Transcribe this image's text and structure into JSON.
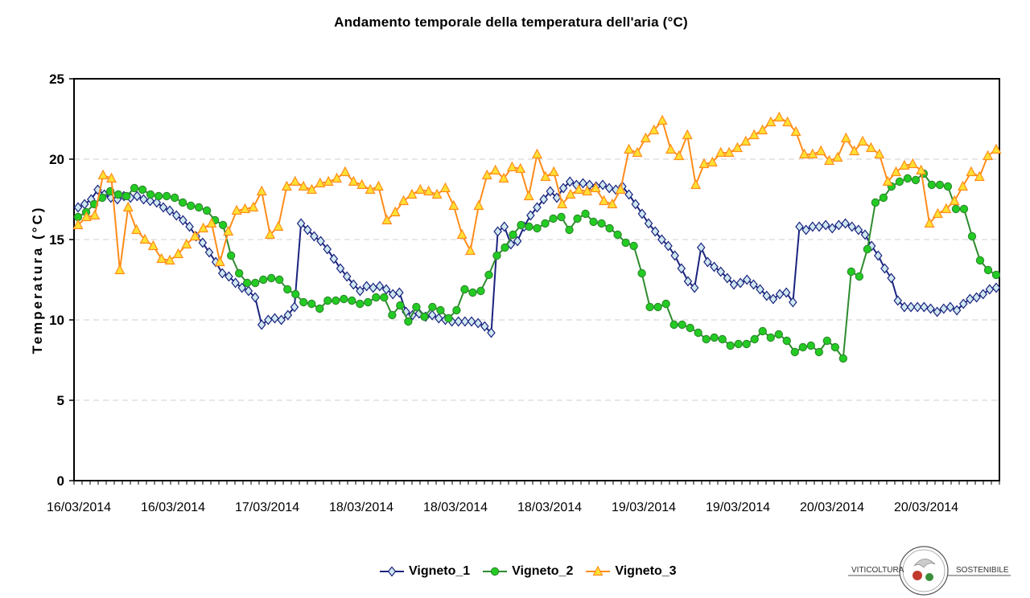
{
  "title": "Andamento temporale della temperatura dell'aria (°C)",
  "logo": {
    "left_text": "VITICOLTURA",
    "right_text": "SOSTENIBILE"
  },
  "chart_data": {
    "type": "line",
    "title": "Andamento temporale della temperatura dell'aria (°C)",
    "xlabel": "",
    "ylabel": "Temperatura (°C)",
    "ylim": [
      0,
      25
    ],
    "yticks": [
      0,
      5,
      10,
      15,
      20,
      25
    ],
    "grid": "horizontal dashed",
    "legend_position": "bottom",
    "x_tick_labels": [
      "16/03/2014",
      "16/03/2014",
      "17/03/2014",
      "18/03/2014",
      "18/03/2014",
      "18/03/2014",
      "19/03/2014",
      "19/03/2014",
      "20/03/2014",
      "20/03/2014"
    ],
    "series": [
      {
        "name": "Vigneto_1",
        "color": "#1a237e",
        "marker": "diamond",
        "values": [
          17.0,
          17.2,
          17.5,
          18.1,
          17.8,
          17.6,
          17.5,
          17.7,
          17.6,
          17.7,
          17.5,
          17.4,
          17.3,
          17.0,
          16.8,
          16.5,
          16.2,
          15.8,
          15.2,
          14.8,
          14.2,
          13.6,
          12.9,
          12.7,
          12.3,
          12.0,
          11.8,
          11.4,
          9.7,
          10.0,
          10.1,
          10.0,
          10.3,
          10.8,
          16.0,
          15.6,
          15.2,
          14.9,
          14.4,
          13.8,
          13.2,
          12.7,
          12.2,
          11.8,
          12.1,
          12.0,
          12.1,
          11.9,
          11.6,
          11.7,
          10.5,
          10.3,
          10.4,
          10.2,
          10.3,
          10.1,
          10.0,
          9.9,
          9.9,
          9.9,
          9.9,
          9.8,
          9.6,
          9.2,
          15.5,
          15.8,
          14.7,
          14.9,
          15.8,
          16.5,
          17.0,
          17.5,
          18.0,
          17.6,
          18.2,
          18.6,
          18.4,
          18.5,
          18.4,
          18.3,
          18.4,
          18.2,
          18.1,
          18.3,
          17.8,
          17.2,
          16.6,
          16.0,
          15.5,
          15.0,
          14.6,
          14.0,
          13.2,
          12.4,
          12.0,
          14.5,
          13.6,
          13.3,
          13.0,
          12.6,
          12.2,
          12.3,
          12.5,
          12.2,
          11.9,
          11.5,
          11.3,
          11.6,
          11.7,
          11.1,
          15.8,
          15.6,
          15.8,
          15.8,
          15.9,
          15.7,
          15.9,
          16.0,
          15.8,
          15.6,
          15.3,
          14.6,
          14.0,
          13.2,
          12.6,
          11.2,
          10.8,
          10.8,
          10.8,
          10.8,
          10.7,
          10.5,
          10.7,
          10.8,
          10.6,
          11.0,
          11.3,
          11.4,
          11.6,
          11.9,
          12.0
        ]
      },
      {
        "name": "Vigneto_2",
        "color": "#2e8b2e",
        "marker": "circle",
        "values": [
          16.4,
          16.7,
          17.2,
          17.6,
          18.0,
          17.8,
          17.7,
          18.2,
          18.1,
          17.8,
          17.7,
          17.7,
          17.6,
          17.3,
          17.1,
          17.0,
          16.8,
          16.2,
          15.9,
          14.0,
          12.9,
          12.3,
          12.3,
          12.5,
          12.6,
          12.5,
          11.9,
          11.6,
          11.1,
          11.0,
          10.7,
          11.2,
          11.2,
          11.3,
          11.2,
          11.0,
          11.1,
          11.4,
          11.4,
          10.3,
          10.9,
          9.9,
          10.8,
          10.2,
          10.8,
          10.6,
          10.1,
          10.6,
          11.9,
          11.7,
          11.8,
          12.8,
          14.0,
          14.5,
          15.3,
          15.9,
          15.8,
          15.7,
          16.0,
          16.3,
          16.4,
          15.6,
          16.3,
          16.6,
          16.1,
          16.0,
          15.7,
          15.3,
          14.8,
          14.6,
          12.9,
          10.8,
          10.8,
          11.0,
          9.7,
          9.7,
          9.5,
          9.2,
          8.8,
          8.9,
          8.8,
          8.4,
          8.5,
          8.5,
          8.8,
          9.3,
          8.9,
          9.1,
          8.7,
          8.0,
          8.3,
          8.4,
          8.0,
          8.7,
          8.3,
          7.6,
          13.0,
          12.7,
          14.4,
          17.3,
          17.6,
          18.3,
          18.6,
          18.8,
          18.7,
          19.1,
          18.4,
          18.4,
          18.3,
          16.9,
          16.9,
          15.2,
          13.7,
          13.1,
          12.8
        ]
      },
      {
        "name": "Vigneto_3",
        "color": "#ff8c1a",
        "marker": "triangle",
        "values": [
          15.9,
          16.4,
          16.5,
          19.0,
          18.8,
          13.1,
          17.0,
          15.6,
          15.0,
          14.6,
          13.8,
          13.7,
          14.1,
          14.7,
          15.2,
          15.7,
          16.0,
          13.6,
          15.5,
          16.8,
          16.9,
          17.0,
          18.0,
          15.3,
          15.8,
          18.3,
          18.6,
          18.3,
          18.1,
          18.5,
          18.6,
          18.8,
          19.2,
          18.6,
          18.4,
          18.1,
          18.3,
          16.2,
          16.7,
          17.4,
          17.8,
          18.1,
          18.0,
          17.8,
          18.2,
          17.1,
          15.3,
          14.3,
          17.1,
          19.0,
          19.3,
          18.8,
          19.5,
          19.4,
          17.7,
          20.3,
          18.9,
          19.2,
          17.2,
          17.8,
          18.1,
          18.0,
          18.2,
          17.4,
          17.2,
          18.1,
          20.6,
          20.4,
          21.3,
          21.8,
          22.4,
          20.6,
          20.2,
          21.5,
          18.4,
          19.7,
          19.8,
          20.4,
          20.4,
          20.7,
          21.1,
          21.5,
          21.8,
          22.3,
          22.6,
          22.3,
          21.7,
          20.3,
          20.3,
          20.5,
          19.9,
          20.1,
          21.3,
          20.5,
          21.1,
          20.7,
          20.3,
          18.6,
          19.2,
          19.6,
          19.7,
          19.3,
          16.0,
          16.6,
          16.9,
          17.4,
          18.3,
          19.2,
          18.9,
          20.2,
          20.6
        ]
      }
    ]
  }
}
